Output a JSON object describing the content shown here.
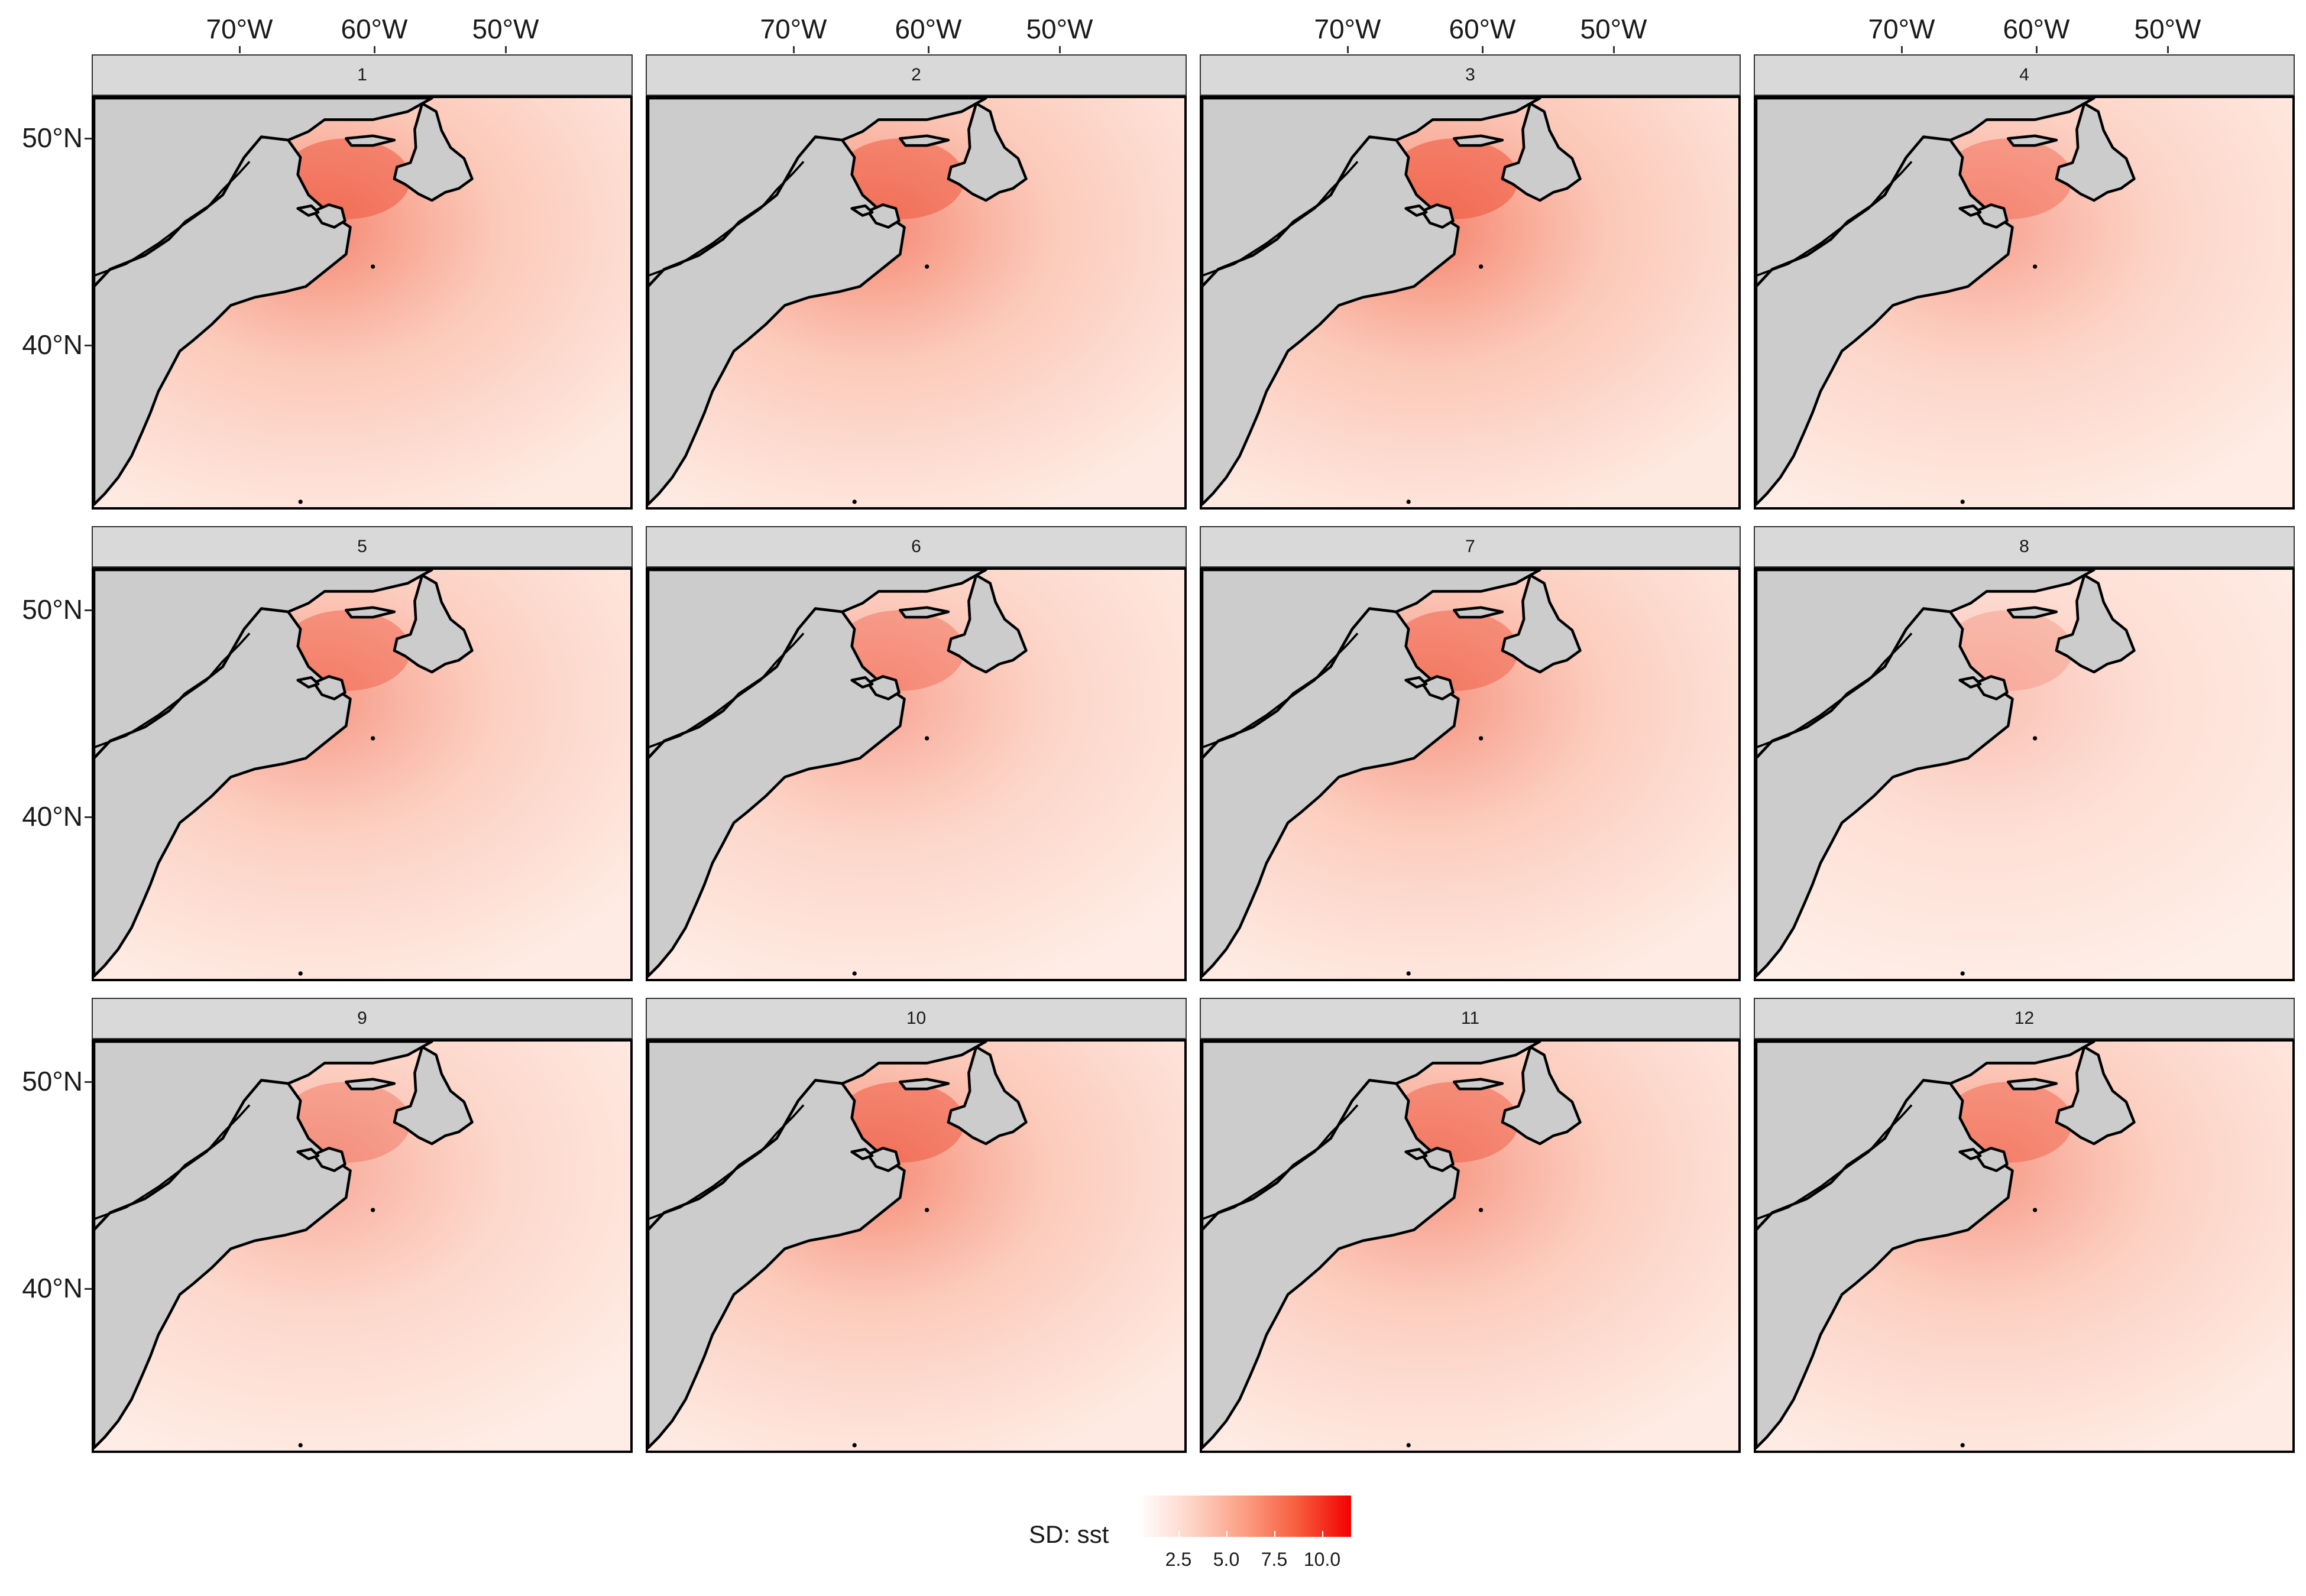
{
  "axes": {
    "x_tick_labels": [
      "70°W",
      "60°W",
      "50°W"
    ],
    "y_tick_labels": [
      "50°N",
      "40°N"
    ]
  },
  "legend": {
    "title": "SD: sst",
    "ticks": [
      "2.5",
      "5.0",
      "7.5",
      "10.0"
    ],
    "colors": [
      "#ffffff",
      "#fdd4c6",
      "#fb9e83",
      "#f75c3d",
      "#f20000"
    ]
  },
  "colors": {
    "land": "#cccccc",
    "coast": "#000000",
    "strip": "#d9d9d9",
    "ocean_base": "#fdd9ce"
  },
  "panels": [
    {
      "label": "1",
      "intensity": 0.62
    },
    {
      "label": "2",
      "intensity": 0.6
    },
    {
      "label": "3",
      "intensity": 0.66
    },
    {
      "label": "4",
      "intensity": 0.38
    },
    {
      "label": "5",
      "intensity": 0.46
    },
    {
      "label": "6",
      "intensity": 0.36
    },
    {
      "label": "7",
      "intensity": 0.5
    },
    {
      "label": "8",
      "intensity": 0.12
    },
    {
      "label": "9",
      "intensity": 0.3
    },
    {
      "label": "10",
      "intensity": 0.58
    },
    {
      "label": "11",
      "intensity": 0.5
    },
    {
      "label": "12",
      "intensity": 0.46
    }
  ]
}
